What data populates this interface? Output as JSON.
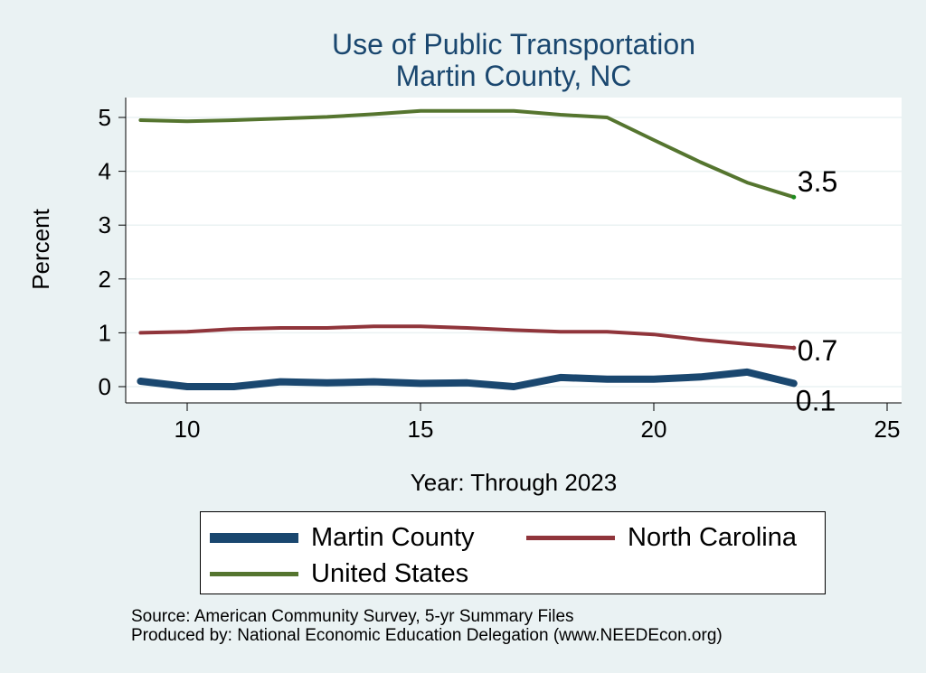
{
  "chart_data": {
    "type": "line",
    "title": "Use of Public Transportation",
    "subtitle": "Martin County, NC",
    "xlabel": "Year: Through 2023",
    "ylabel": "Percent",
    "xlim": [
      9,
      25
    ],
    "ylim": [
      0,
      5
    ],
    "xticks": [
      10,
      15,
      20,
      25
    ],
    "yticks": [
      0,
      1,
      2,
      3,
      4,
      5
    ],
    "grid": true,
    "legend_position": "bottom",
    "x": [
      9,
      10,
      11,
      12,
      13,
      14,
      15,
      16,
      17,
      18,
      19,
      20,
      21,
      22,
      23
    ],
    "series": [
      {
        "name": "Martin County",
        "color": "#1A476F",
        "values": [
          0.1,
          0.0,
          0.0,
          0.09,
          0.07,
          0.09,
          0.06,
          0.07,
          0.0,
          0.17,
          0.14,
          0.14,
          0.18,
          0.27,
          0.06
        ],
        "end_label": "0.1"
      },
      {
        "name": "North Carolina",
        "color": "#90353B",
        "values": [
          1.0,
          1.02,
          1.07,
          1.09,
          1.09,
          1.12,
          1.12,
          1.09,
          1.05,
          1.02,
          1.02,
          0.97,
          0.87,
          0.79,
          0.72
        ],
        "end_label": "0.7"
      },
      {
        "name": "United States",
        "color": "#55752F",
        "values": [
          4.95,
          4.93,
          4.95,
          4.98,
          5.01,
          5.06,
          5.12,
          5.12,
          5.12,
          5.05,
          5.0,
          4.58,
          4.17,
          3.79,
          3.52
        ],
        "end_label": "3.5"
      }
    ]
  },
  "footer": {
    "source": "Source: American Community Survey, 5-yr Summary Files",
    "producer": "Produced by: National Economic Education Delegation (www.NEEDEcon.org)"
  }
}
